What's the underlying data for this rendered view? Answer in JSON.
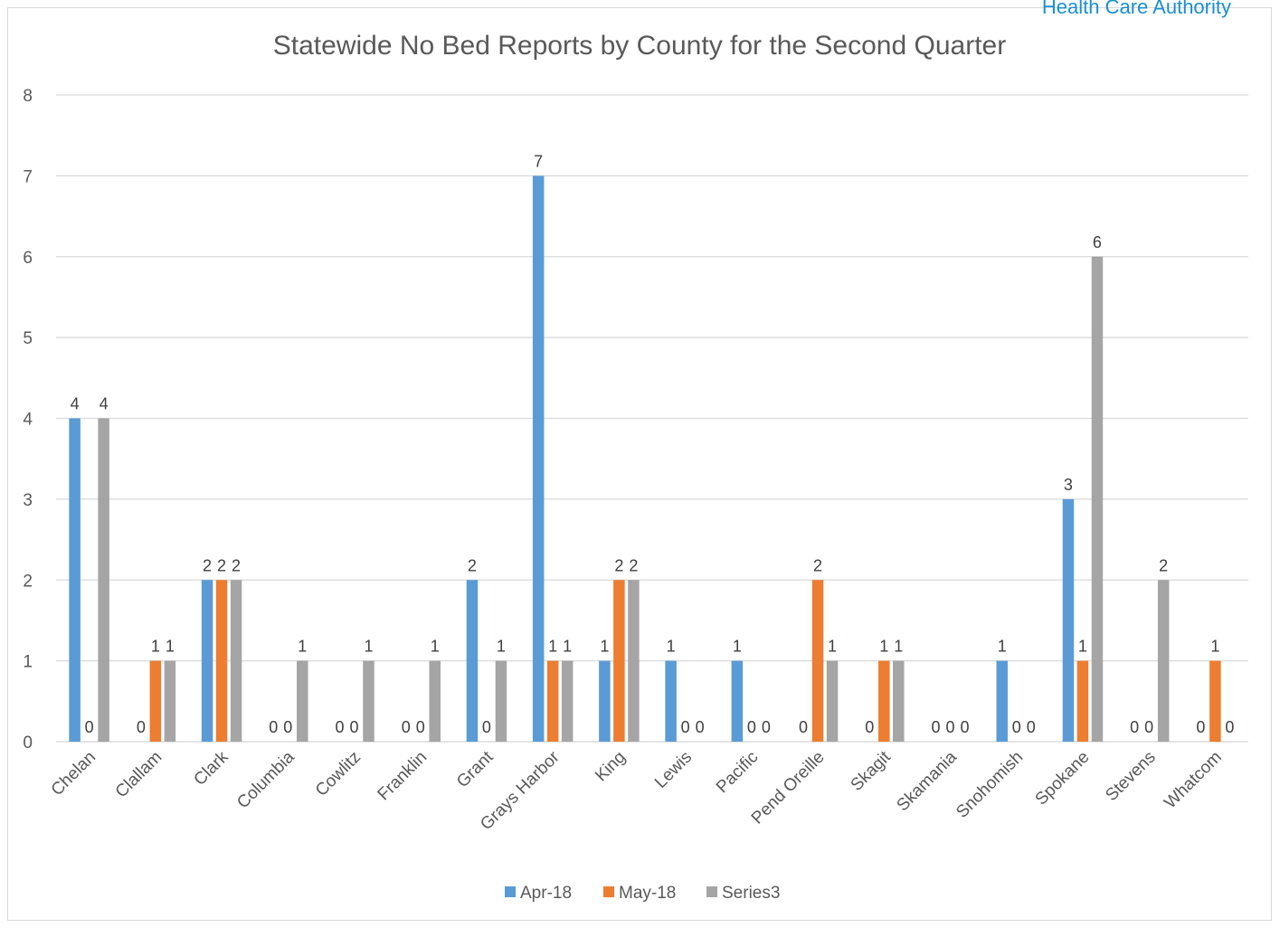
{
  "brand_text": "Health Care Authority",
  "chart_data": {
    "type": "bar",
    "title": "Statewide No Bed Reports by County for the Second Quarter",
    "xlabel": "",
    "ylabel": "",
    "ylim": [
      0,
      8
    ],
    "yticks": [
      0,
      1,
      2,
      3,
      4,
      5,
      6,
      7,
      8
    ],
    "grid": true,
    "legend_position": "bottom",
    "categories": [
      "Chelan",
      "Clallam",
      "Clark",
      "Columbia",
      "Cowlitz",
      "Franklin",
      "Grant",
      "Grays Harbor",
      "King",
      "Lewis",
      "Pacific",
      "Pend Oreille",
      "Skagit",
      "Skamania",
      "Snohomish",
      "Spokane",
      "Stevens",
      "Whatcom"
    ],
    "series": [
      {
        "name": "Apr-18",
        "color": "#5b9bd5",
        "values": [
          4,
          0,
          2,
          0,
          0,
          0,
          2,
          7,
          1,
          1,
          1,
          0,
          0,
          0,
          1,
          3,
          0,
          0
        ]
      },
      {
        "name": "May-18",
        "color": "#ed7d31",
        "values": [
          0,
          1,
          2,
          0,
          0,
          0,
          0,
          1,
          2,
          0,
          0,
          2,
          1,
          0,
          0,
          1,
          0,
          1
        ]
      },
      {
        "name": "Series3",
        "color": "#a5a5a5",
        "values": [
          4,
          1,
          2,
          1,
          1,
          1,
          1,
          1,
          2,
          0,
          0,
          1,
          1,
          0,
          0,
          6,
          2,
          0
        ]
      }
    ],
    "data_labels": [
      [
        "4",
        "0",
        "4"
      ],
      [
        "0",
        "1",
        "1"
      ],
      [
        "2",
        "2",
        "2"
      ],
      [
        "0",
        "0",
        "1"
      ],
      [
        "0",
        "0",
        "1"
      ],
      [
        "0",
        "0",
        "1"
      ],
      [
        "2",
        "0",
        "1"
      ],
      [
        "7",
        "1",
        "1"
      ],
      [
        "1",
        "2",
        "2"
      ],
      [
        "1",
        "0",
        "0"
      ],
      [
        "1",
        "0",
        "0"
      ],
      [
        "0",
        "2",
        "1"
      ],
      [
        "0",
        "1",
        "1"
      ],
      [
        "0",
        "0",
        "0"
      ],
      [
        "1",
        "0",
        "0"
      ],
      [
        "3",
        "1",
        "6"
      ],
      [
        "0",
        "0",
        "2"
      ],
      [
        "0",
        "1",
        "0"
      ]
    ]
  }
}
